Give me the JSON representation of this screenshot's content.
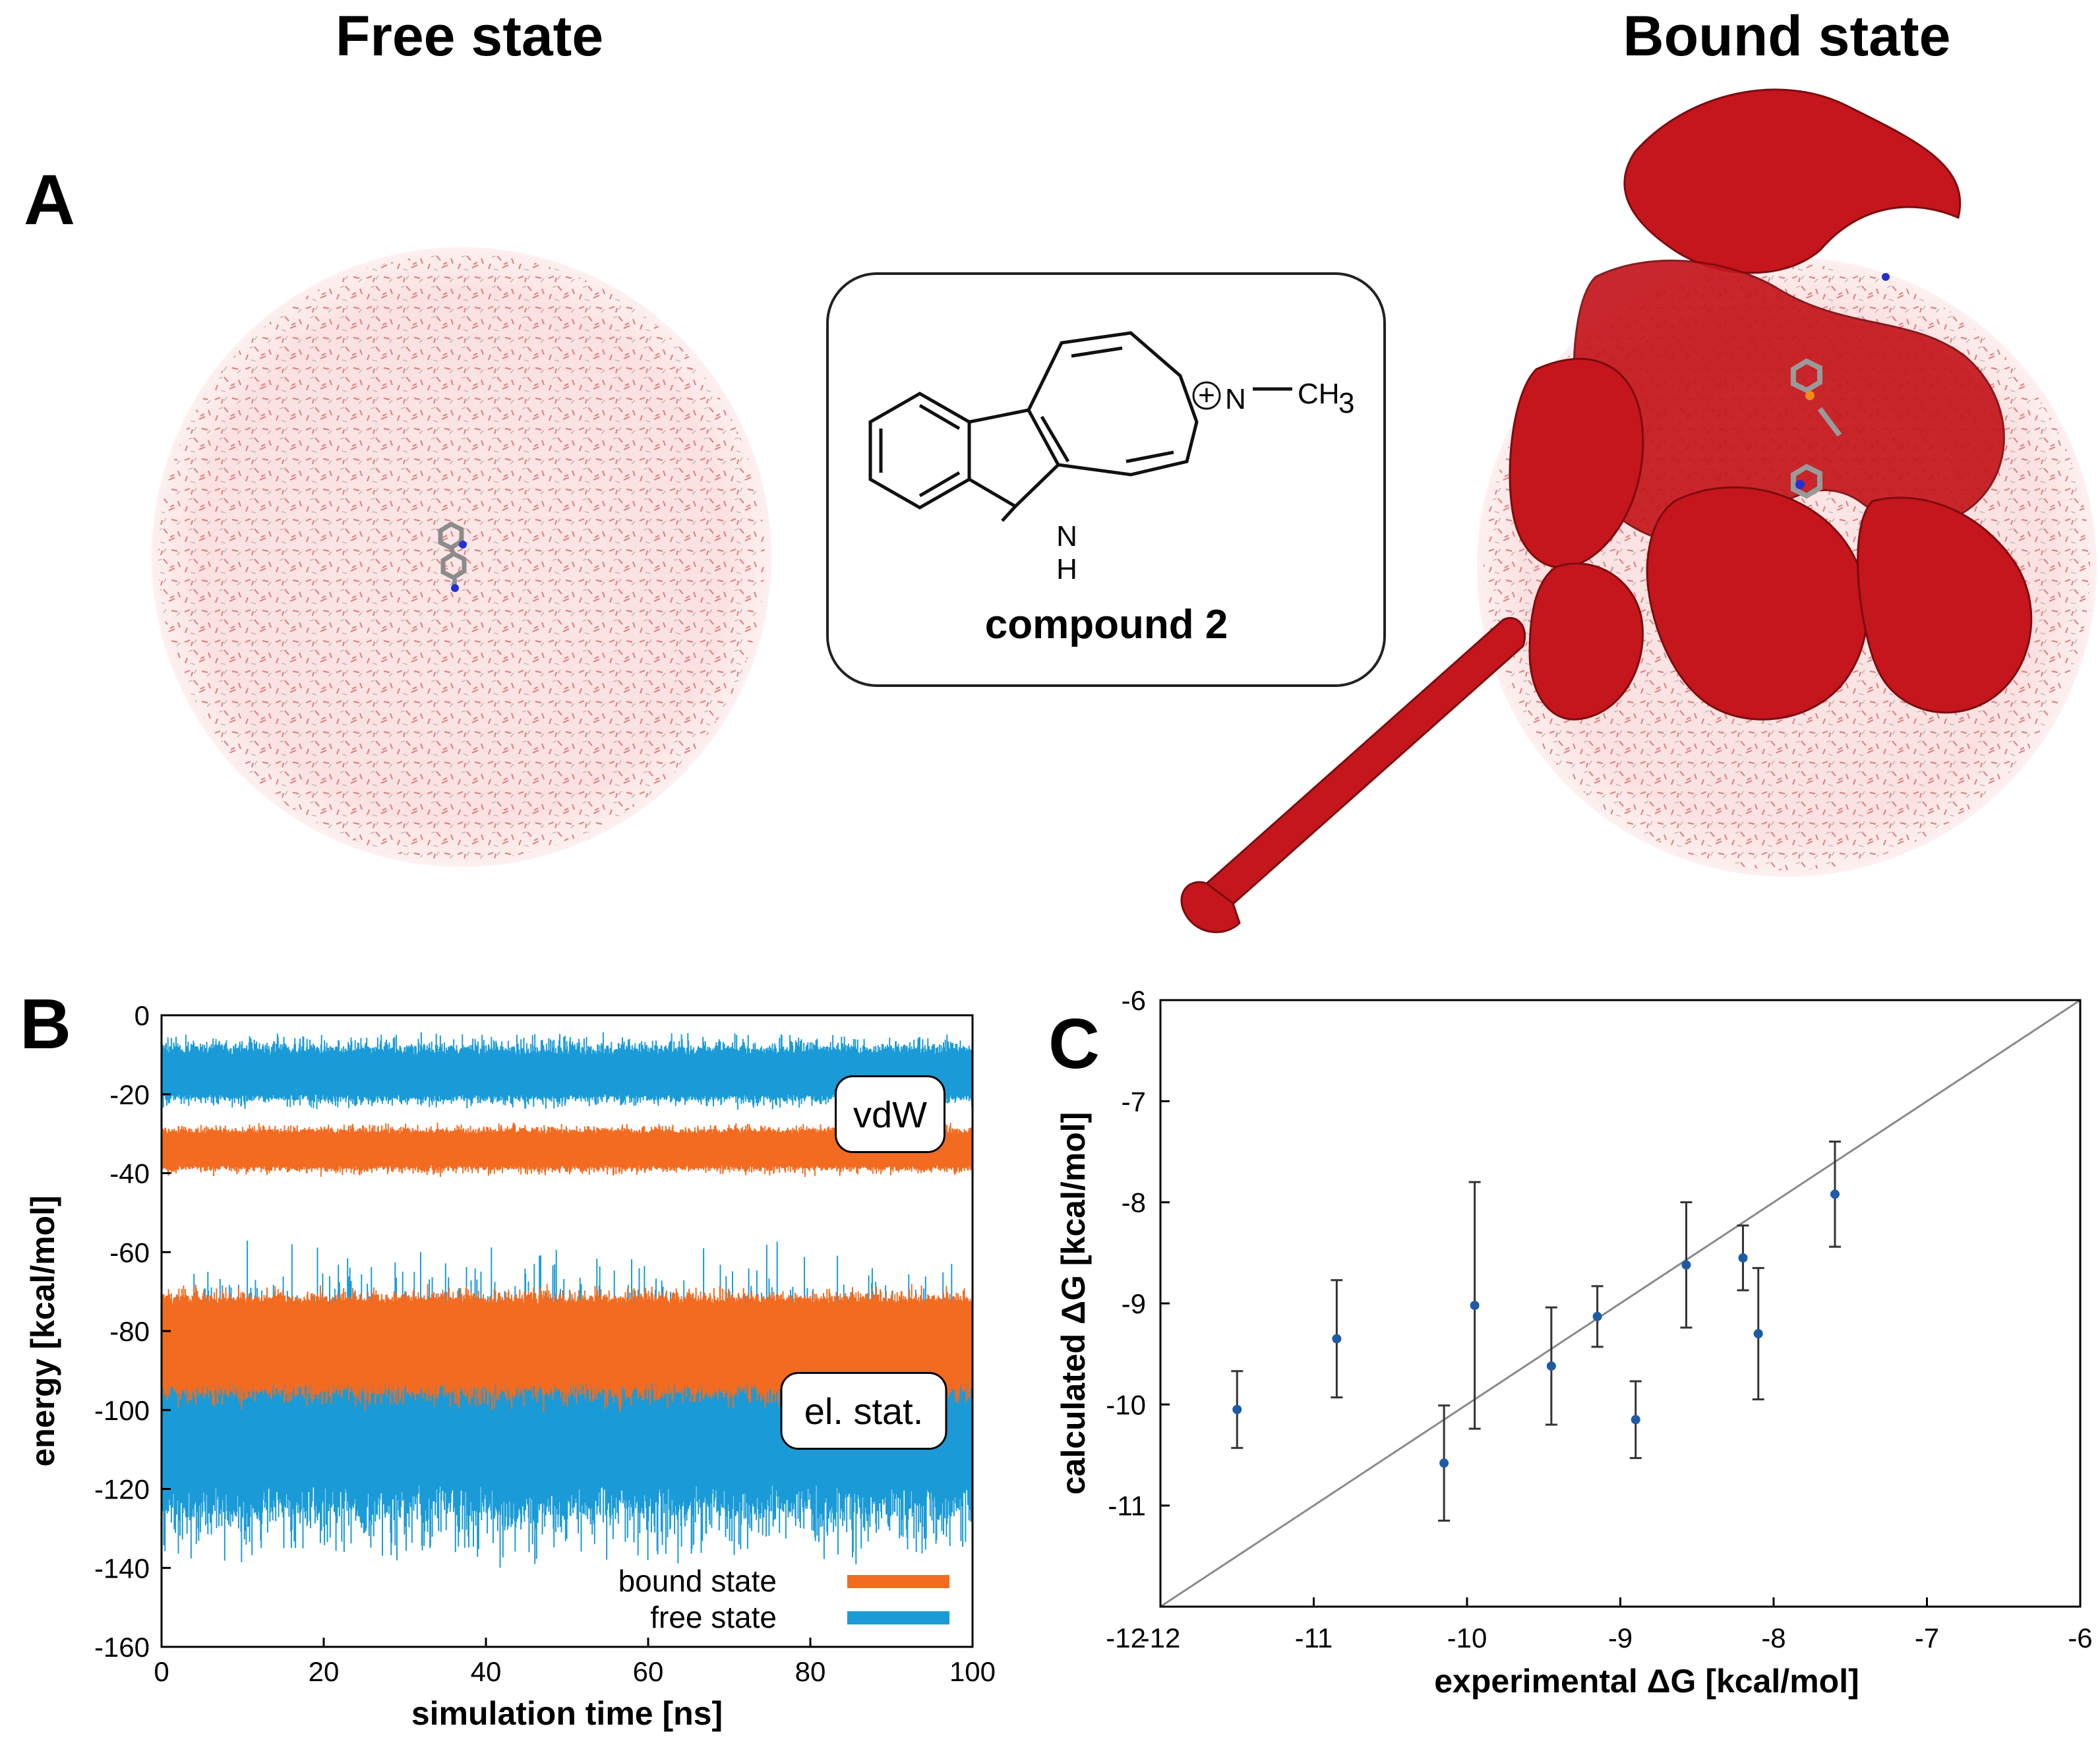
{
  "panels": {
    "A": {
      "label": "A",
      "free_title": "Free state",
      "bound_title": "Bound state",
      "compound": {
        "name": "compound 2",
        "n_label": "N",
        "nh_n": "N",
        "nh_h": "H",
        "methyl": "CH",
        "methyl_sub": "3",
        "charge": "+"
      }
    },
    "B": {
      "label": "B"
    },
    "C": {
      "label": "C"
    }
  },
  "chart_data": [
    {
      "id": "B",
      "type": "line",
      "xlabel": "simulation  time [ns]",
      "ylabel": "energy [kcal/mol]",
      "xlim": [
        0,
        100
      ],
      "ylim": [
        -160,
        0
      ],
      "xticks": [
        0,
        20,
        40,
        60,
        80,
        100
      ],
      "yticks": [
        0,
        -20,
        -40,
        -60,
        -80,
        -100,
        -120,
        -140,
        -160
      ],
      "series": [
        {
          "name": "free state",
          "term": "vdW",
          "color": "#1a9bd7",
          "mean": -15,
          "core_halfwidth": 5,
          "spike_up": -4,
          "spike_down": -24
        },
        {
          "name": "bound state",
          "term": "vdW",
          "color": "#f26b21",
          "mean": -34,
          "core_halfwidth": 4,
          "spike_up": -27,
          "spike_down": -41
        },
        {
          "name": "free state",
          "term": "el. stat.",
          "color": "#1a9bd7",
          "mean": -105,
          "core_halfwidth": 14,
          "spike_up": -55,
          "spike_down": -141
        },
        {
          "name": "bound state",
          "term": "el. stat.",
          "color": "#f26b21",
          "mean": -83,
          "core_halfwidth": 10,
          "spike_up": -68,
          "spike_down": -101
        }
      ],
      "annotations": [
        "vdW",
        "el. stat."
      ],
      "legend": [
        {
          "label": "bound state",
          "color": "#f26b21"
        },
        {
          "label": "free state",
          "color": "#1a9bd7"
        }
      ],
      "legend_position": "bottom-right"
    },
    {
      "id": "C",
      "type": "scatter",
      "xlabel": "experimental ΔG [kcal/mol]",
      "ylabel": "calculated ΔG [kcal/mol]",
      "xlim": [
        -12,
        -6
      ],
      "ylim": [
        -12,
        -6
      ],
      "xticks": [
        -12,
        -11,
        -10,
        -9,
        -8,
        -7,
        -6
      ],
      "yticks": [
        -6,
        -7,
        -8,
        -9,
        -10,
        -11
      ],
      "diagonal": true,
      "points": [
        {
          "x": -11.5,
          "y": -10.05,
          "err": 0.38
        },
        {
          "x": -10.85,
          "y": -9.35,
          "err": 0.58
        },
        {
          "x": -10.15,
          "y": -10.58,
          "err": 0.57
        },
        {
          "x": -9.95,
          "y": -9.02,
          "err": 1.22
        },
        {
          "x": -9.45,
          "y": -9.62,
          "err": 0.58
        },
        {
          "x": -9.15,
          "y": -9.13,
          "err": 0.3
        },
        {
          "x": -8.9,
          "y": -10.15,
          "err": 0.38
        },
        {
          "x": -8.57,
          "y": -8.62,
          "err": 0.62
        },
        {
          "x": -8.2,
          "y": -8.55,
          "err": 0.32
        },
        {
          "x": -8.1,
          "y": -9.3,
          "err": 0.65
        },
        {
          "x": -7.6,
          "y": -7.92,
          "err": 0.52
        }
      ],
      "point_color": "#1f5aa6"
    }
  ]
}
